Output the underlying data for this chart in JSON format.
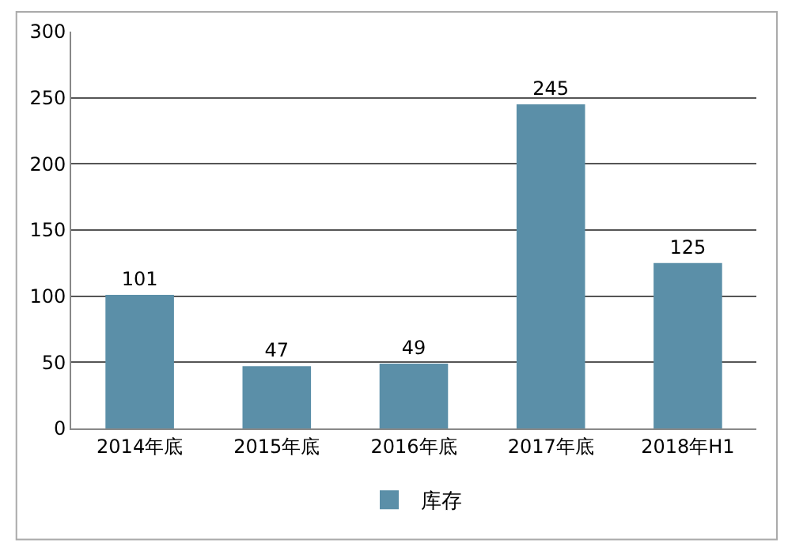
{
  "chart_data": {
    "type": "bar",
    "categories": [
      "2014年底",
      "2015年底",
      "2016年底",
      "2017年底",
      "2018年H1"
    ],
    "series": [
      {
        "name": "库存",
        "color": "#5b8fa8",
        "values": [
          101,
          47,
          49,
          245,
          125
        ]
      }
    ],
    "ylim": [
      0,
      300
    ],
    "yticks": [
      0,
      50,
      100,
      150,
      200,
      250,
      300
    ],
    "grid": "y",
    "legend": "bottom",
    "data_labels": true
  }
}
